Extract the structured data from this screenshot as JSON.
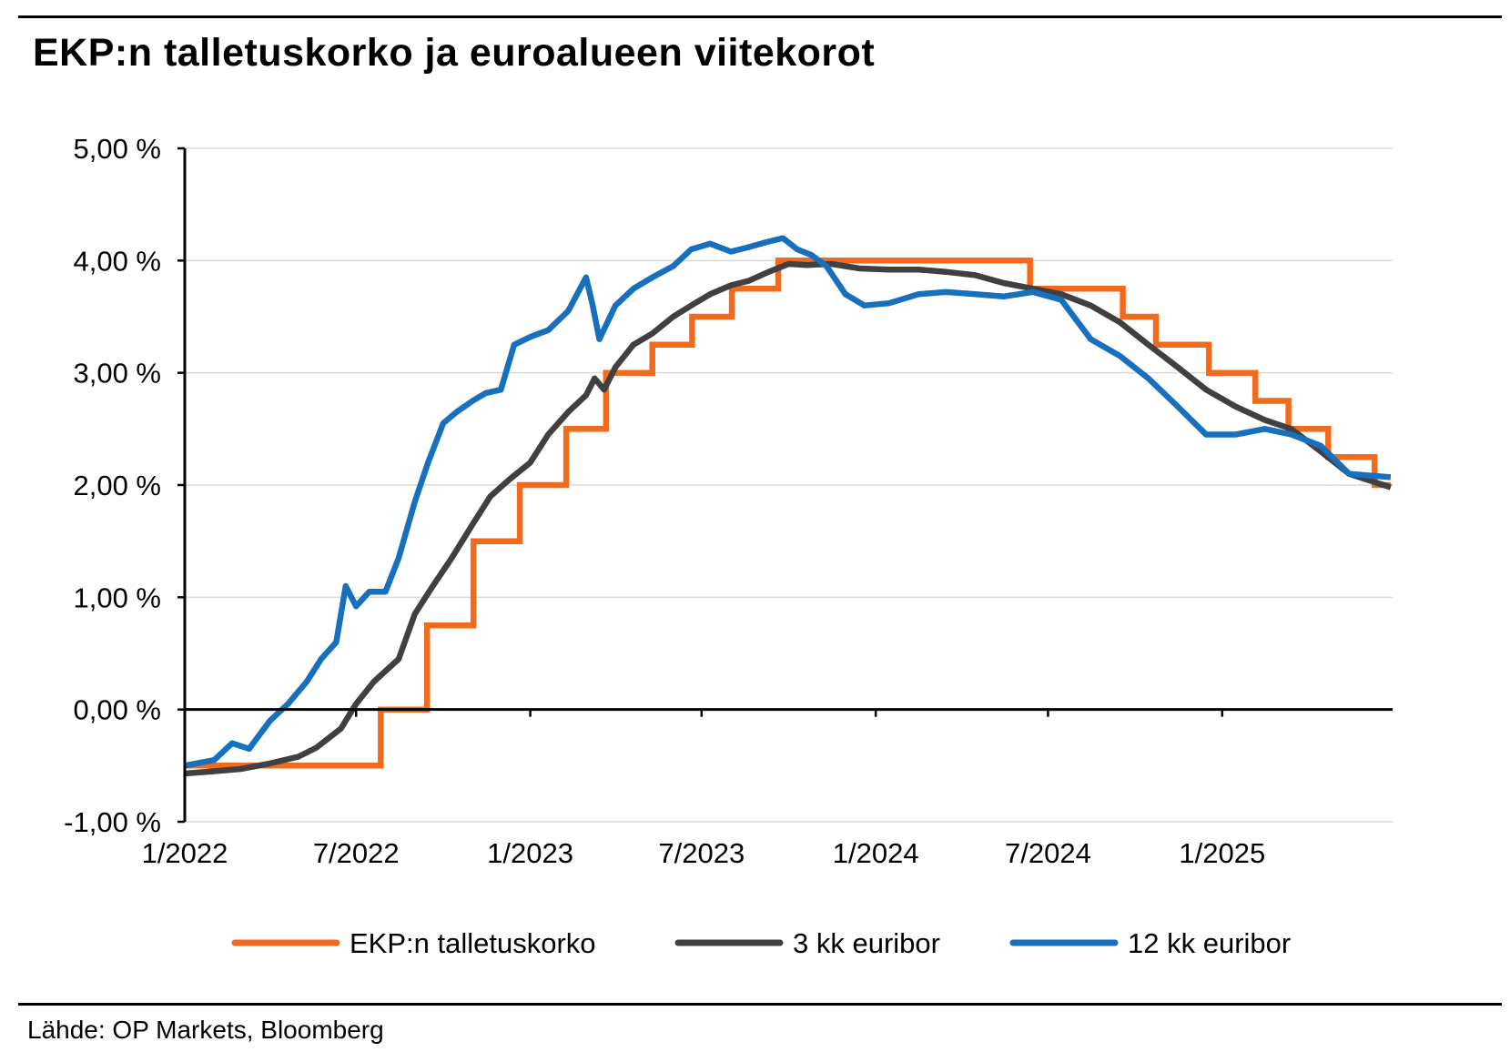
{
  "title": "EKP:n talletuskorko ja euroalueen viitekorot",
  "source": "Lähde: OP Markets, Bloomberg",
  "chart_data": {
    "type": "line",
    "title": "EKP:n talletuskorko ja euroalueen viitekorot",
    "xlabel": "",
    "ylabel": "",
    "xlim": [
      "2022-01-01",
      "2025-06-30"
    ],
    "ylim": [
      -1,
      5
    ],
    "grid": true,
    "legend_position": "bottom",
    "y_ticks": [
      {
        "value": 5,
        "label": "5,00 %"
      },
      {
        "value": 4,
        "label": "4,00 %"
      },
      {
        "value": 3,
        "label": "3,00 %"
      },
      {
        "value": 2,
        "label": "2,00 %"
      },
      {
        "value": 1,
        "label": "1,00 %"
      },
      {
        "value": 0,
        "label": "0,00 %"
      },
      {
        "value": -1,
        "label": "-1,00 %"
      }
    ],
    "x_ticks": [
      {
        "date": "2022-01-01",
        "label": "1/2022"
      },
      {
        "date": "2022-07-01",
        "label": "7/2022"
      },
      {
        "date": "2023-01-01",
        "label": "1/2023"
      },
      {
        "date": "2023-07-01",
        "label": "7/2023"
      },
      {
        "date": "2024-01-01",
        "label": "1/2024"
      },
      {
        "date": "2024-07-01",
        "label": "7/2024"
      },
      {
        "date": "2025-01-01",
        "label": "1/2025"
      }
    ],
    "series": [
      {
        "name": "EKP:n talletuskorko",
        "color": "#F26B1D",
        "step": true,
        "x": [
          "2022-01-01",
          "2022-07-27",
          "2022-09-14",
          "2022-11-02",
          "2022-12-21",
          "2023-02-08",
          "2023-03-22",
          "2023-05-10",
          "2023-06-21",
          "2023-08-02",
          "2023-09-20",
          "2024-06-12",
          "2024-09-18",
          "2024-10-23",
          "2024-12-18",
          "2025-02-05",
          "2025-03-12",
          "2025-04-23",
          "2025-06-11",
          "2025-06-28"
        ],
        "y": [
          -0.5,
          0.0,
          0.75,
          1.5,
          2.0,
          2.5,
          3.0,
          3.25,
          3.5,
          3.75,
          4.0,
          3.75,
          3.5,
          3.25,
          3.0,
          2.75,
          2.5,
          2.25,
          2.0,
          2.0
        ]
      },
      {
        "name": "3 kk euribor",
        "color": "#404040",
        "step": false,
        "x": [
          "2022-01-01",
          "2022-02-01",
          "2022-03-01",
          "2022-04-01",
          "2022-05-01",
          "2022-05-20",
          "2022-06-15",
          "2022-07-01",
          "2022-07-20",
          "2022-08-15",
          "2022-09-01",
          "2022-09-20",
          "2022-10-10",
          "2022-11-01",
          "2022-11-20",
          "2022-12-10",
          "2023-01-01",
          "2023-01-20",
          "2023-02-10",
          "2023-03-01",
          "2023-03-10",
          "2023-03-20",
          "2023-04-01",
          "2023-04-20",
          "2023-05-10",
          "2023-06-01",
          "2023-06-20",
          "2023-07-10",
          "2023-08-01",
          "2023-08-20",
          "2023-09-10",
          "2023-10-01",
          "2023-10-20",
          "2023-11-15",
          "2023-12-15",
          "2024-01-15",
          "2024-02-15",
          "2024-03-15",
          "2024-04-15",
          "2024-05-15",
          "2024-06-15",
          "2024-07-15",
          "2024-08-15",
          "2024-09-15",
          "2024-10-15",
          "2024-11-15",
          "2024-12-15",
          "2025-01-15",
          "2025-02-15",
          "2025-03-15",
          "2025-04-15",
          "2025-05-15",
          "2025-06-28"
        ],
        "y": [
          -0.57,
          -0.55,
          -0.53,
          -0.48,
          -0.42,
          -0.34,
          -0.17,
          0.05,
          0.25,
          0.45,
          0.85,
          1.1,
          1.35,
          1.65,
          1.9,
          2.05,
          2.2,
          2.45,
          2.65,
          2.8,
          2.95,
          2.85,
          3.05,
          3.25,
          3.35,
          3.5,
          3.6,
          3.7,
          3.78,
          3.82,
          3.9,
          3.97,
          3.96,
          3.97,
          3.93,
          3.92,
          3.92,
          3.9,
          3.87,
          3.8,
          3.75,
          3.7,
          3.6,
          3.45,
          3.25,
          3.05,
          2.85,
          2.7,
          2.58,
          2.5,
          2.3,
          2.1,
          1.98
        ]
      },
      {
        "name": "12 kk euribor",
        "color": "#1770BD",
        "step": false,
        "x": [
          "2022-01-01",
          "2022-02-01",
          "2022-02-20",
          "2022-03-10",
          "2022-04-01",
          "2022-04-20",
          "2022-05-10",
          "2022-05-25",
          "2022-06-10",
          "2022-06-20",
          "2022-07-01",
          "2022-07-15",
          "2022-08-01",
          "2022-08-15",
          "2022-09-01",
          "2022-09-15",
          "2022-10-01",
          "2022-10-15",
          "2022-11-01",
          "2022-11-15",
          "2022-12-01",
          "2022-12-15",
          "2023-01-01",
          "2023-01-20",
          "2023-02-10",
          "2023-03-01",
          "2023-03-08",
          "2023-03-15",
          "2023-04-01",
          "2023-04-20",
          "2023-05-10",
          "2023-06-01",
          "2023-06-20",
          "2023-07-10",
          "2023-08-01",
          "2023-08-20",
          "2023-09-10",
          "2023-09-25",
          "2023-10-10",
          "2023-10-25",
          "2023-11-10",
          "2023-11-30",
          "2023-12-20",
          "2024-01-15",
          "2024-02-15",
          "2024-03-15",
          "2024-04-15",
          "2024-05-15",
          "2024-06-15",
          "2024-07-15",
          "2024-08-15",
          "2024-09-15",
          "2024-10-15",
          "2024-11-15",
          "2024-12-15",
          "2025-01-15",
          "2025-02-15",
          "2025-03-15",
          "2025-04-15",
          "2025-05-15",
          "2025-06-28"
        ],
        "y": [
          -0.5,
          -0.45,
          -0.3,
          -0.35,
          -0.1,
          0.05,
          0.25,
          0.45,
          0.6,
          1.1,
          0.92,
          1.05,
          1.05,
          1.35,
          1.85,
          2.2,
          2.55,
          2.65,
          2.75,
          2.82,
          2.85,
          3.25,
          3.32,
          3.38,
          3.55,
          3.85,
          3.6,
          3.3,
          3.6,
          3.75,
          3.85,
          3.95,
          4.1,
          4.15,
          4.08,
          4.12,
          4.17,
          4.2,
          4.1,
          4.05,
          3.95,
          3.7,
          3.6,
          3.62,
          3.7,
          3.72,
          3.7,
          3.68,
          3.72,
          3.65,
          3.3,
          3.15,
          2.95,
          2.7,
          2.45,
          2.45,
          2.5,
          2.45,
          2.35,
          2.1,
          2.07
        ]
      }
    ]
  }
}
